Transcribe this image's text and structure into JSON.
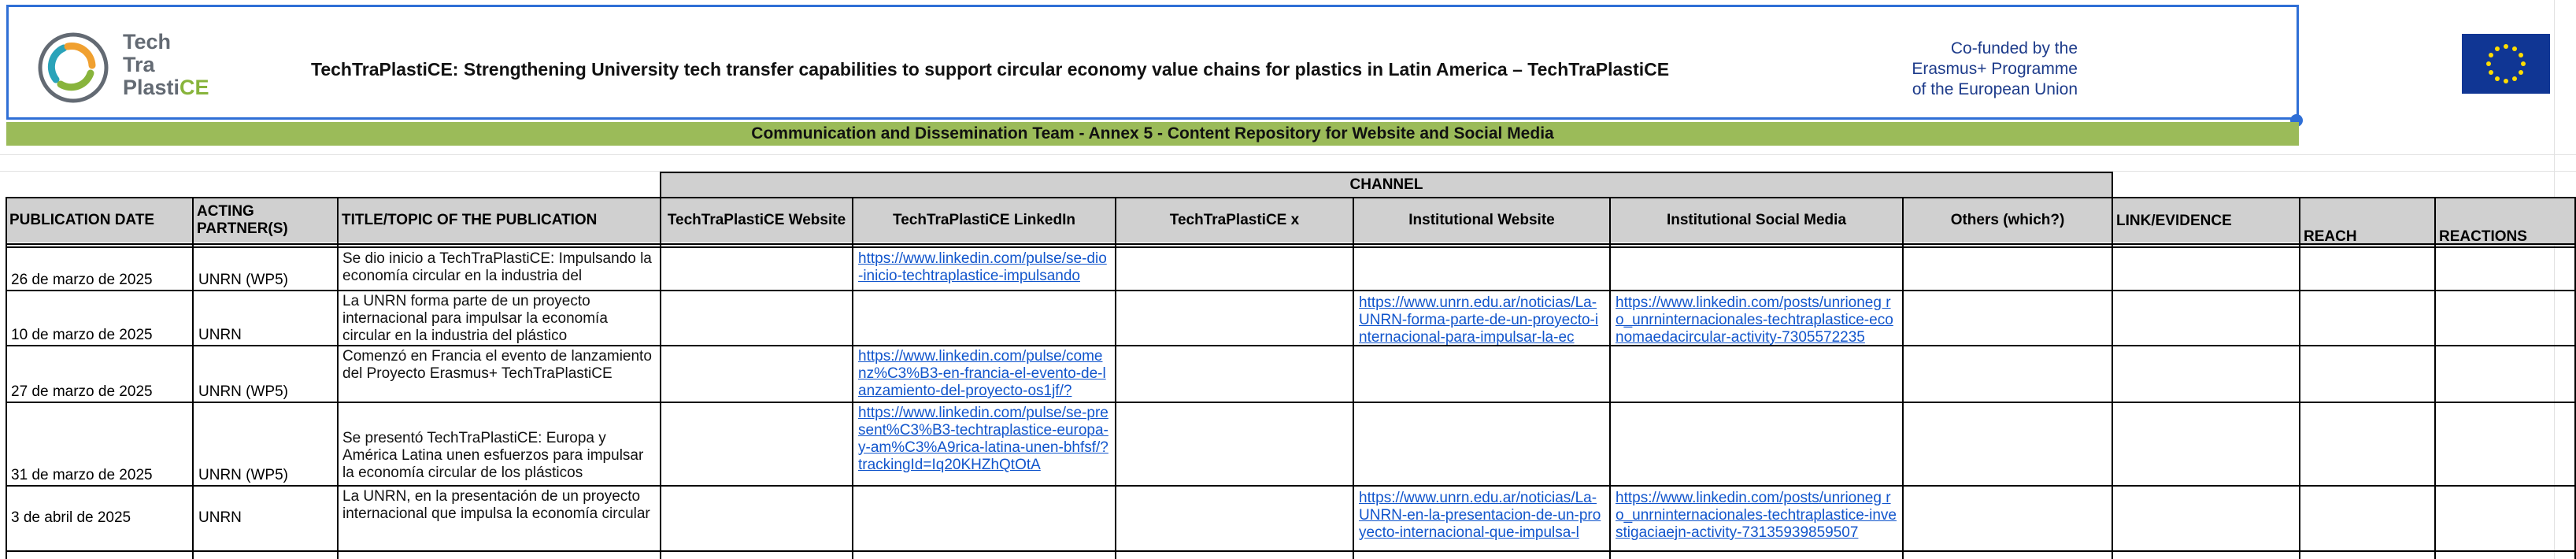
{
  "banner": {
    "logo_line1": "Tech",
    "logo_line2": "Tra",
    "logo_line3a": "Plasti",
    "logo_line3b": "CE",
    "title": "TechTraPlastiCE: Strengthening University tech transfer capabilities to support circular economy value chains for plastics in Latin America – TechTraPlastiCE",
    "eu_line1": "Co-funded by the",
    "eu_line2": "Erasmus+ Programme",
    "eu_line3": "of the European Union"
  },
  "subtitle": "Communication and Dissemination Team - Annex 5 - Content Repository for Website and Social Media",
  "table": {
    "channel_label": "CHANNEL",
    "headers": {
      "date": "PUBLICATION DATE",
      "partner": "ACTING PARTNER(S)",
      "title": "TITLE/TOPIC OF THE PUBLICATION",
      "website": "TechTraPlastiCE Website",
      "linkedin": "TechTraPlastiCE LinkedIn",
      "x": "TechTraPlastiCE x",
      "inst_web": "Institutional Website",
      "inst_social": "Institutional Social Media",
      "others": "Others (which?)",
      "evidence": "LINK/EVIDENCE",
      "reach": "REACH",
      "reactions": "REACTIONS"
    },
    "rows": [
      {
        "date": "26 de marzo de 2025",
        "partner": "UNRN (WP5)",
        "title": "Se dio inicio a TechTraPlastiCE: Impulsando la economía circular en la industria del",
        "linkedin": "https://www.linkedin.com/pulse/se-dio-inicio-techtraplastice-impulsando",
        "inst_web": "",
        "inst_social": ""
      },
      {
        "date": "10 de marzo de 2025",
        "partner": "UNRN",
        "title": "La UNRN forma parte de un proyecto internacional para impulsar la economía circular en la industria del plástico",
        "linkedin": "",
        "inst_web": "https://www.unrn.edu.ar/noticias/La-UNRN-forma-parte-de-un-proyecto-internacional-para-impulsar-la-ec",
        "inst_social": "https://www.linkedin.com/posts/unrioneg ro_unrninternacionales-techtraplastice-economaedacircular-activity-7305572235"
      },
      {
        "date": "27 de marzo de 2025",
        "partner": "UNRN (WP5)",
        "title": "Comenzó en Francia el evento de lanzamiento del Proyecto Erasmus+ TechTraPlastiCE",
        "linkedin": "https://www.linkedin.com/pulse/comenz%C3%B3-en-francia-el-evento-de-lanzamiento-del-proyecto-os1jf/?",
        "inst_web": "",
        "inst_social": ""
      },
      {
        "date": "31 de marzo de 2025",
        "partner": "UNRN (WP5)",
        "title": "Se presentó TechTraPlastiCE: Europa y América Latina unen esfuerzos para impulsar la economía circular de los plásticos",
        "linkedin": "https://www.linkedin.com/pulse/se-present%C3%B3-techtraplastice-europa-y-am%C3%A9rica-latina-unen-bhfsf/?trackingId=Iq20KHZhQtOtA",
        "inst_web": "",
        "inst_social": ""
      },
      {
        "date": "3 de abril de 2025",
        "partner": "UNRN",
        "title": "La UNRN, en la presentación de un proyecto internacional que impulsa la economía circular",
        "linkedin": "",
        "inst_web": "https://www.unrn.edu.ar/noticias/La-UNRN-en-la-presentacion-de-un-proyecto-internacional-que-impulsa-l",
        "inst_social": "https://www.linkedin.com/posts/unrioneg ro_unrninternacionales-techtraplastice-investigaciaejn-activity-73135939859507"
      }
    ]
  },
  "colors": {
    "banner_border": "#2f6fd6",
    "green_bar": "#9bbb59",
    "header_fill": "#d0d0d0",
    "link": "#1155cc",
    "eu_blue": "#103694",
    "eu_star": "#ffdd00"
  }
}
